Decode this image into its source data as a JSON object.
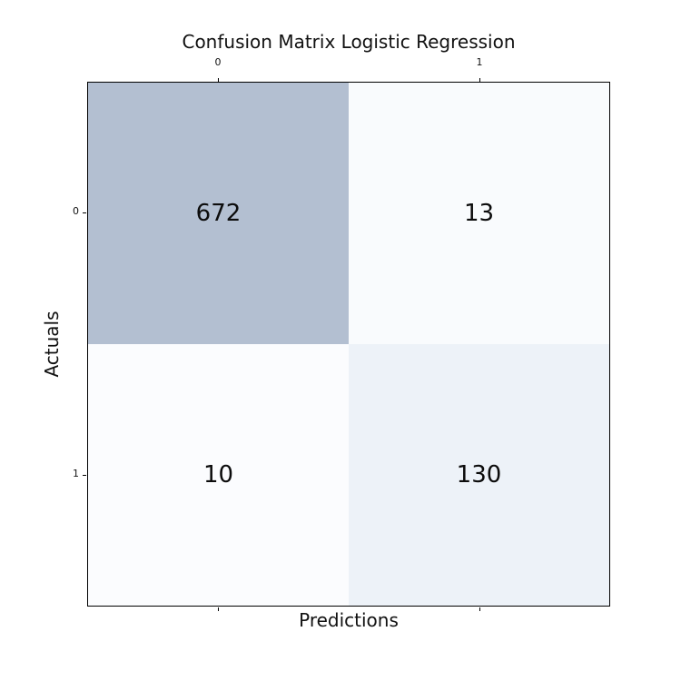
{
  "chart_data": {
    "type": "heatmap",
    "title": "Confusion Matrix Logistic Regression",
    "xlabel": "Predictions",
    "ylabel": "Actuals",
    "x_tick_labels": [
      "0",
      "1"
    ],
    "y_tick_labels": [
      "0",
      "1"
    ],
    "matrix": [
      [
        672,
        13
      ],
      [
        10,
        130
      ]
    ],
    "rows": [
      {
        "actual": "0",
        "pred_0": 672,
        "pred_1": 13
      },
      {
        "actual": "1",
        "pred_0": 10,
        "pred_1": 130
      }
    ],
    "cell_colors": [
      [
        "#b3bfd1",
        "#f9fbfd"
      ],
      [
        "#fbfcfe",
        "#edf2f8"
      ]
    ],
    "colors": {
      "background": "#ffffff",
      "axis_border": "#000000",
      "text": "#111111"
    },
    "legend": "none",
    "grid": false
  }
}
